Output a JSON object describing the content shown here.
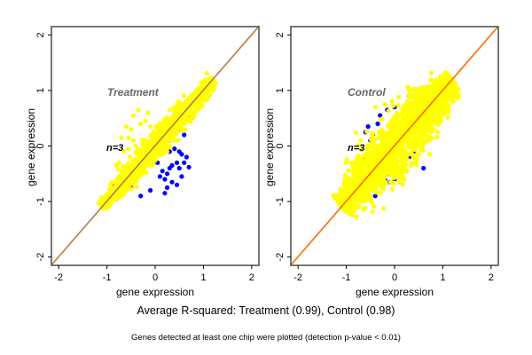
{
  "chart_data": [
    {
      "type": "scatter",
      "panel": "left",
      "title": "Treatment",
      "annotation": "n=3",
      "xlabel": "gene expression",
      "ylabel": "gene expression",
      "xlim": [
        -2.15,
        2.15
      ],
      "ylim": [
        -2.15,
        2.15
      ],
      "xticks": [
        -2,
        -1,
        0,
        1,
        2
      ],
      "yticks": [
        -2,
        -1,
        0,
        1,
        2
      ],
      "grid": false,
      "reference_line": {
        "slope": 1,
        "intercept": 0,
        "colors": [
          "#ff0000",
          "#ffa500"
        ]
      },
      "series": [
        {
          "name": "pair-outliers-blue",
          "color": "#0000ff",
          "points": [
            [
              0.1,
              -0.55
            ],
            [
              0.2,
              -0.6
            ],
            [
              0.25,
              -0.75
            ],
            [
              0.3,
              -0.4
            ],
            [
              0.35,
              -0.35
            ],
            [
              0.45,
              -0.3
            ],
            [
              0.5,
              -0.4
            ],
            [
              0.55,
              -0.55
            ],
            [
              0.6,
              -0.3
            ],
            [
              0.65,
              -0.2
            ],
            [
              0.55,
              -0.15
            ],
            [
              0.7,
              -0.38
            ],
            [
              0.3,
              -0.1
            ],
            [
              0.4,
              -0.05
            ],
            [
              0.6,
              0.2
            ],
            [
              0.7,
              0.45
            ],
            [
              0.75,
              0.5
            ],
            [
              0.15,
              -0.45
            ],
            [
              0.05,
              -0.3
            ],
            [
              -0.05,
              -0.2
            ],
            [
              0.8,
              0.6
            ],
            [
              0.45,
              -0.7
            ],
            [
              0.35,
              -0.65
            ],
            [
              0.2,
              -0.85
            ],
            [
              -0.1,
              -0.8
            ],
            [
              -0.3,
              -0.9
            ],
            [
              0.25,
              -0.5
            ],
            [
              0.5,
              -0.1
            ]
          ]
        },
        {
          "name": "pair-outliers-red",
          "color": "#ff0000",
          "points": [
            [
              -1.1,
              -1.0
            ],
            [
              -0.9,
              -0.7
            ],
            [
              -0.8,
              -0.95
            ],
            [
              -0.6,
              -0.55
            ],
            [
              -0.45,
              -0.6
            ],
            [
              -0.3,
              -0.4
            ],
            [
              -0.1,
              -0.2
            ],
            [
              0.1,
              -0.05
            ],
            [
              0.3,
              0.1
            ],
            [
              0.5,
              0.3
            ],
            [
              0.7,
              0.55
            ],
            [
              0.9,
              0.8
            ],
            [
              1.0,
              1.05
            ],
            [
              -0.7,
              -0.85
            ],
            [
              -0.5,
              -0.75
            ],
            [
              0.2,
              0.05
            ],
            [
              0.4,
              0.2
            ]
          ]
        },
        {
          "name": "genes-yellow",
          "color": "#ffff00",
          "points": [
            [
              -0.35,
              0.65
            ],
            [
              -0.15,
              0.6
            ],
            [
              -0.45,
              0.55
            ],
            [
              -0.6,
              0.35
            ],
            [
              -0.7,
              0.15
            ],
            [
              -0.55,
              0.15
            ],
            [
              -0.45,
              0.1
            ],
            [
              -0.65,
              -0.1
            ],
            [
              -0.75,
              -0.3
            ],
            [
              -0.8,
              -0.35
            ],
            [
              -0.2,
              0.45
            ],
            [
              -0.3,
              0.4
            ],
            [
              -0.1,
              0.35
            ],
            [
              0.1,
              0.25
            ],
            [
              0.3,
              0.65
            ],
            [
              0.5,
              0.7
            ],
            [
              -0.5,
              0.3
            ],
            [
              -0.4,
              0.0
            ],
            [
              -0.55,
              -0.05
            ]
          ]
        },
        {
          "name": "genes-yellow-bulk",
          "color": "#ffff00",
          "band": {
            "x_range": [
              -1.1,
              1.2
            ],
            "spread_sd": 0.07,
            "count": 1400
          }
        }
      ]
    },
    {
      "type": "scatter",
      "panel": "right",
      "title": "Control",
      "annotation": "n=3",
      "xlabel": "gene expression",
      "ylabel": "gene expression",
      "xlim": [
        -2.15,
        2.15
      ],
      "ylim": [
        -2.15,
        2.15
      ],
      "xticks": [
        -2,
        -1,
        0,
        1,
        2
      ],
      "yticks": [
        -2,
        -1,
        0,
        1,
        2
      ],
      "grid": false,
      "reference_line": {
        "slope": 1,
        "intercept": 0,
        "colors": [
          "#ff0000",
          "#ffa500"
        ]
      },
      "series": [
        {
          "name": "pair-outliers-blue",
          "color": "#0000ff",
          "points": [
            [
              -0.8,
              -0.35
            ],
            [
              -0.7,
              -0.55
            ],
            [
              -0.85,
              -0.6
            ],
            [
              -0.6,
              0.25
            ],
            [
              -0.45,
              0.2
            ],
            [
              -0.55,
              0.35
            ],
            [
              -0.35,
              0.4
            ],
            [
              -0.5,
              0.1
            ],
            [
              -0.3,
              0.55
            ],
            [
              -0.15,
              0.65
            ],
            [
              0.0,
              0.7
            ],
            [
              0.3,
              0.9
            ],
            [
              0.5,
              0.95
            ],
            [
              0.5,
              0.4
            ],
            [
              0.6,
              0.2
            ],
            [
              0.7,
              0.35
            ],
            [
              0.4,
              -0.1
            ],
            [
              0.3,
              -0.2
            ],
            [
              0.2,
              -0.35
            ],
            [
              0.1,
              -0.55
            ],
            [
              0.0,
              -0.6
            ],
            [
              -0.1,
              -0.65
            ],
            [
              -0.2,
              -0.6
            ],
            [
              -0.4,
              -0.9
            ],
            [
              -0.15,
              -0.5
            ],
            [
              0.25,
              -0.45
            ],
            [
              0.6,
              -0.4
            ],
            [
              0.55,
              0.0
            ],
            [
              0.8,
              0.6
            ],
            [
              0.9,
              0.8
            ],
            [
              -0.65,
              -0.2
            ],
            [
              -0.4,
              -0.7
            ]
          ]
        },
        {
          "name": "genes-yellow",
          "color": "#ffff00",
          "points": [
            [
              -1.0,
              -0.3
            ],
            [
              -0.4,
              0.7
            ],
            [
              -0.2,
              0.75
            ],
            [
              -0.7,
              0.1
            ],
            [
              0.5,
              -0.15
            ],
            [
              0.2,
              -0.6
            ],
            [
              0.1,
              -0.55
            ],
            [
              -0.3,
              -0.7
            ],
            [
              0.7,
              0.1
            ],
            [
              0.8,
              0.3
            ],
            [
              -0.5,
              -0.75
            ],
            [
              0.45,
              0.85
            ]
          ]
        },
        {
          "name": "genes-yellow-bulk",
          "color": "#ffff00",
          "band": {
            "x_range": [
              -1.1,
              1.2
            ],
            "spread_sd": 0.16,
            "count": 1800
          }
        }
      ]
    }
  ],
  "captions": {
    "main": "Average R-squared: Treatment (0.99), Control (0.98)",
    "sub": "Genes detected at least one chip were plotted (detection p-value < 0.01)"
  }
}
